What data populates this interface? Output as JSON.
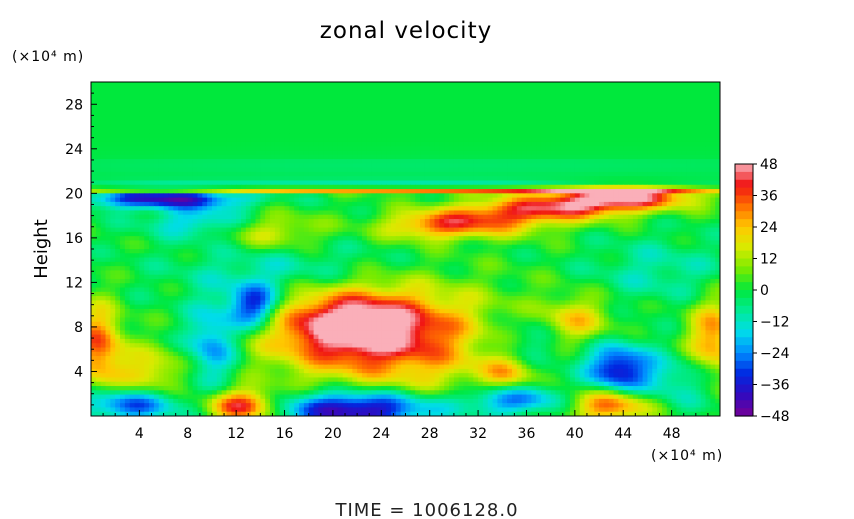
{
  "chart_data": {
    "type": "heatmap",
    "title": "zonal velocity",
    "ylabel": "Height",
    "xlabel": "",
    "x_unit_label": "(×10⁴ m)",
    "y_unit_label": "(×10⁴ m)",
    "footer": "TIME  =  1006128.0",
    "xlim": [
      0,
      52
    ],
    "ylim": [
      0,
      30
    ],
    "x_ticks": [
      4,
      8,
      12,
      16,
      20,
      24,
      28,
      32,
      36,
      40,
      44,
      48
    ],
    "y_ticks": [
      4,
      8,
      12,
      16,
      20,
      24,
      28
    ],
    "colorbar": {
      "range": [
        -48,
        48
      ],
      "ticks": [
        48,
        36,
        24,
        12,
        0,
        -12,
        -24,
        -36,
        -48
      ],
      "tick_labels": [
        "48",
        "36",
        "24",
        "12",
        "0",
        "−12",
        "−24",
        "−36",
        "−48"
      ]
    },
    "features": [
      {
        "x": 21.5,
        "y": 8.3,
        "value": 42,
        "sx": 4.5,
        "sy": 2.2
      },
      {
        "x": 26,
        "y": 6.5,
        "value": 28,
        "sx": 7.5,
        "sy": 3.5
      },
      {
        "x": 44,
        "y": 19.6,
        "value": 42,
        "sx": 4,
        "sy": 0.7
      },
      {
        "x": 39,
        "y": 18.7,
        "value": 32,
        "sx": 4.5,
        "sy": 0.8
      },
      {
        "x": 33,
        "y": 17.6,
        "value": 28,
        "sx": 4,
        "sy": 1.0
      },
      {
        "x": 28,
        "y": 17,
        "value": 22,
        "sx": 3,
        "sy": 0.9
      },
      {
        "x": 6,
        "y": 19.5,
        "value": -40,
        "sx": 4.5,
        "sy": 0.6
      },
      {
        "x": 13.5,
        "y": 9.8,
        "value": -38,
        "sx": 1.5,
        "sy": 1.4
      },
      {
        "x": 10,
        "y": 6.5,
        "value": -26,
        "sx": 1.5,
        "sy": 2.5
      },
      {
        "x": 43.5,
        "y": 4.2,
        "value": -38,
        "sx": 1.8,
        "sy": 1.6
      },
      {
        "x": 22,
        "y": 0.6,
        "value": -48,
        "sx": 4.5,
        "sy": 1.2
      },
      {
        "x": 35,
        "y": 1.5,
        "value": -30,
        "sx": 3,
        "sy": 1
      },
      {
        "x": 3,
        "y": 1,
        "value": -30,
        "sx": 3,
        "sy": 1
      },
      {
        "x": 12.5,
        "y": 0.9,
        "value": 42,
        "sx": 2,
        "sy": 1.0
      },
      {
        "x": 43,
        "y": 1,
        "value": 36,
        "sx": 2.5,
        "sy": 1.1
      },
      {
        "x": 0.6,
        "y": 6.3,
        "value": 34,
        "sx": 1.4,
        "sy": 2.6
      },
      {
        "x": 51.5,
        "y": 7,
        "value": 30,
        "sx": 1.5,
        "sy": 2.5
      },
      {
        "x": 4.8,
        "y": 4,
        "value": 20,
        "sx": 2,
        "sy": 1.5
      },
      {
        "x": 34.5,
        "y": 3.8,
        "value": 22,
        "sx": 1.5,
        "sy": 1.2
      },
      {
        "x": 40,
        "y": 8.5,
        "value": 22,
        "sx": 2,
        "sy": 1.5
      },
      {
        "x": 36,
        "y": 6.5,
        "value": -18,
        "sx": 3,
        "sy": 2
      },
      {
        "x": 16,
        "y": 13,
        "value": -12,
        "sx": 6,
        "sy": 2
      },
      {
        "x": 47,
        "y": 13,
        "value": -10,
        "sx": 4,
        "sy": 2
      },
      {
        "x": 48,
        "y": 3,
        "value": -14,
        "sx": 2.5,
        "sy": 1.8
      },
      {
        "x": 15,
        "y": 16.5,
        "value": 18,
        "sx": 3,
        "sy": 1.2
      },
      {
        "x": 9,
        "y": 17.5,
        "value": -18,
        "sx": 3,
        "sy": 1
      },
      {
        "x": 12,
        "y": 20.3,
        "value": 30,
        "sx": 20,
        "sy": 0.18
      },
      {
        "x": 40,
        "y": 20.2,
        "value": 22,
        "sx": 12,
        "sy": 0.2
      },
      {
        "x": 26,
        "y": 20.8,
        "value": -10,
        "sx": 18,
        "sy": 0.3
      },
      {
        "x": 26,
        "y": 22.5,
        "value": -4,
        "sx": 30,
        "sy": 1.0
      }
    ]
  }
}
